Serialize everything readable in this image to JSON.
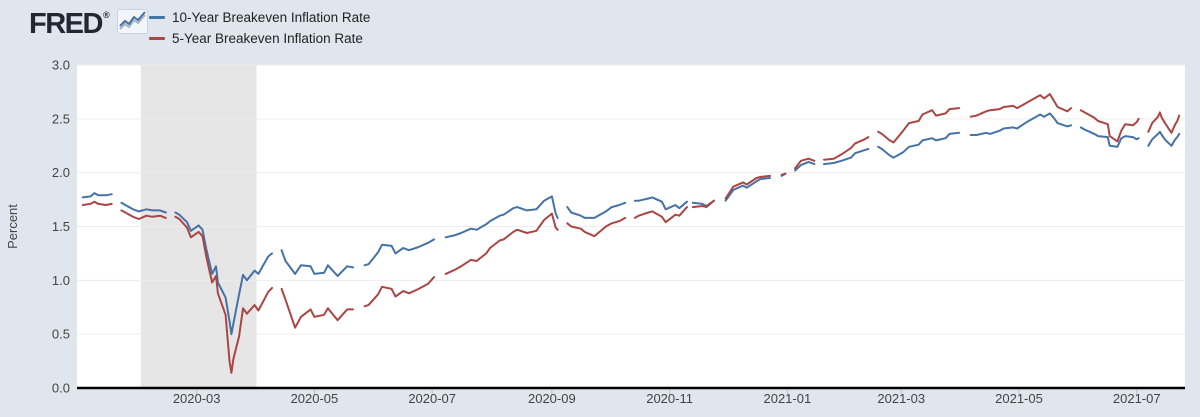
{
  "page": {
    "background": "#dfe6ed",
    "plot_background": "#ffffff"
  },
  "header": {
    "logo_text": "FRED",
    "logo_registered": "®",
    "logo_icon": "fred-sparkline-icon"
  },
  "legend": {
    "position": "top-left",
    "items": [
      {
        "label": "10-Year Breakeven Inflation Rate",
        "color": "#4572a7"
      },
      {
        "label": "5-Year Breakeven Inflation Rate",
        "color": "#aa4643"
      }
    ]
  },
  "chart_data": {
    "type": "line",
    "title": "",
    "xlabel": "",
    "ylabel": "Percent",
    "ylim": [
      0,
      3.0
    ],
    "x_domain": [
      "2019-12-30",
      "2021-07-26"
    ],
    "grid": "horizontal",
    "legend_position": "top-left",
    "colors": {
      "axis_line": "#000000",
      "grid": "#ededed",
      "tick": "#bcc3cb",
      "label": "#444444",
      "recession_band": "#e6e6e6"
    },
    "yticks": [
      {
        "value": 0.0,
        "label": "0.0"
      },
      {
        "value": 0.5,
        "label": "0.5"
      },
      {
        "value": 1.0,
        "label": "1.0"
      },
      {
        "value": 1.5,
        "label": "1.5"
      },
      {
        "value": 2.0,
        "label": "2.0"
      },
      {
        "value": 2.5,
        "label": "2.5"
      },
      {
        "value": 3.0,
        "label": "3.0"
      }
    ],
    "xticks": [
      {
        "date": "2020-03-01",
        "label": "2020-03"
      },
      {
        "date": "2020-05-01",
        "label": "2020-05"
      },
      {
        "date": "2020-07-01",
        "label": "2020-07"
      },
      {
        "date": "2020-09-01",
        "label": "2020-09"
      },
      {
        "date": "2020-11-01",
        "label": "2020-11"
      },
      {
        "date": "2021-01-01",
        "label": "2021-01"
      },
      {
        "date": "2021-03-01",
        "label": "2021-03"
      },
      {
        "date": "2021-05-01",
        "label": "2021-05"
      },
      {
        "date": "2021-07-01",
        "label": "2021-07"
      }
    ],
    "recession_band": {
      "start": "2020-02-01",
      "end": "2020-04-01",
      "color": "#e6e6e6"
    },
    "dates": [
      "2020-01-02",
      "2020-01-06",
      "2020-01-08",
      "2020-01-10",
      "2020-01-14",
      "2020-01-17",
      "2020-01-20",
      "2020-01-22",
      "2020-01-24",
      "2020-01-28",
      "2020-01-31",
      "2020-02-04",
      "2020-02-07",
      "2020-02-11",
      "2020-02-14",
      "2020-02-17",
      "2020-02-19",
      "2020-02-21",
      "2020-02-25",
      "2020-02-27",
      "2020-03-02",
      "2020-03-04",
      "2020-03-06",
      "2020-03-09",
      "2020-03-11",
      "2020-03-12",
      "2020-03-16",
      "2020-03-18",
      "2020-03-19",
      "2020-03-20",
      "2020-03-23",
      "2020-03-25",
      "2020-03-27",
      "2020-03-31",
      "2020-04-02",
      "2020-04-07",
      "2020-04-09",
      "2020-04-10",
      "2020-04-14",
      "2020-04-16",
      "2020-04-21",
      "2020-04-24",
      "2020-04-29",
      "2020-05-01",
      "2020-05-06",
      "2020-05-08",
      "2020-05-13",
      "2020-05-18",
      "2020-05-21",
      "2020-05-25",
      "2020-05-27",
      "2020-05-29",
      "2020-06-03",
      "2020-06-05",
      "2020-06-10",
      "2020-06-12",
      "2020-06-16",
      "2020-06-19",
      "2020-06-24",
      "2020-06-29",
      "2020-07-02",
      "2020-07-03",
      "2020-07-08",
      "2020-07-13",
      "2020-07-16",
      "2020-07-21",
      "2020-07-24",
      "2020-07-29",
      "2020-07-31",
      "2020-08-05",
      "2020-08-07",
      "2020-08-12",
      "2020-08-14",
      "2020-08-19",
      "2020-08-24",
      "2020-08-28",
      "2020-09-01",
      "2020-09-03",
      "2020-09-04",
      "2020-09-07",
      "2020-09-09",
      "2020-09-11",
      "2020-09-16",
      "2020-09-18",
      "2020-09-23",
      "2020-09-25",
      "2020-09-29",
      "2020-10-02",
      "2020-10-06",
      "2020-10-09",
      "2020-10-12",
      "2020-10-14",
      "2020-10-16",
      "2020-10-21",
      "2020-10-23",
      "2020-10-28",
      "2020-10-30",
      "2020-11-04",
      "2020-11-06",
      "2020-11-10",
      "2020-11-11",
      "2020-11-13",
      "2020-11-18",
      "2020-11-20",
      "2020-11-24",
      "2020-11-26",
      "2020-11-30",
      "2020-12-04",
      "2020-12-09",
      "2020-12-11",
      "2020-12-16",
      "2020-12-18",
      "2020-12-23",
      "2020-12-25",
      "2020-12-29",
      "2020-12-31",
      "2021-01-01",
      "2021-01-05",
      "2021-01-08",
      "2021-01-12",
      "2021-01-15",
      "2021-01-18",
      "2021-01-20",
      "2021-01-25",
      "2021-01-29",
      "2021-02-03",
      "2021-02-05",
      "2021-02-10",
      "2021-02-12",
      "2021-02-15",
      "2021-02-17",
      "2021-02-19",
      "2021-02-23",
      "2021-02-25",
      "2021-03-02",
      "2021-03-05",
      "2021-03-10",
      "2021-03-12",
      "2021-03-17",
      "2021-03-19",
      "2021-03-24",
      "2021-03-26",
      "2021-03-31",
      "2021-04-02",
      "2021-04-06",
      "2021-04-09",
      "2021-04-14",
      "2021-04-16",
      "2021-04-21",
      "2021-04-23",
      "2021-04-28",
      "2021-04-30",
      "2021-05-05",
      "2021-05-07",
      "2021-05-12",
      "2021-05-14",
      "2021-05-17",
      "2021-05-19",
      "2021-05-21",
      "2021-05-26",
      "2021-05-28",
      "2021-05-31",
      "2021-06-02",
      "2021-06-04",
      "2021-06-09",
      "2021-06-11",
      "2021-06-16",
      "2021-06-17",
      "2021-06-21",
      "2021-06-23",
      "2021-06-25",
      "2021-06-29",
      "2021-07-01",
      "2021-07-02",
      "2021-07-05",
      "2021-07-07",
      "2021-07-09",
      "2021-07-12",
      "2021-07-13",
      "2021-07-14",
      "2021-07-16",
      "2021-07-19",
      "2021-07-21",
      "2021-07-22",
      "2021-07-23"
    ],
    "series": [
      {
        "name": "10-Year Breakeven Inflation Rate",
        "color": "#4572a7",
        "values": [
          1.77,
          1.78,
          1.81,
          1.79,
          1.79,
          1.8,
          null,
          1.72,
          1.7,
          1.66,
          1.64,
          1.66,
          1.65,
          1.65,
          1.63,
          null,
          1.63,
          1.61,
          1.54,
          1.46,
          1.51,
          1.47,
          1.29,
          1.06,
          1.13,
          0.98,
          0.84,
          0.62,
          0.5,
          0.6,
          0.87,
          1.05,
          1.0,
          1.09,
          1.06,
          1.22,
          1.25,
          null,
          1.28,
          1.18,
          1.06,
          1.14,
          1.13,
          1.06,
          1.07,
          1.14,
          1.04,
          1.13,
          1.12,
          null,
          1.14,
          1.15,
          1.26,
          1.33,
          1.32,
          1.25,
          1.3,
          1.28,
          1.31,
          1.35,
          1.38,
          null,
          1.4,
          1.42,
          1.44,
          1.48,
          1.47,
          1.52,
          1.55,
          1.6,
          1.61,
          1.67,
          1.68,
          1.65,
          1.66,
          1.74,
          1.78,
          1.62,
          1.58,
          null,
          1.68,
          1.63,
          1.6,
          1.58,
          1.58,
          1.6,
          1.64,
          1.68,
          1.7,
          1.72,
          null,
          1.74,
          1.74,
          1.76,
          1.77,
          1.73,
          1.66,
          1.7,
          1.67,
          1.73,
          null,
          1.72,
          1.71,
          1.69,
          1.74,
          null,
          1.74,
          1.84,
          1.88,
          1.86,
          1.92,
          1.94,
          1.95,
          null,
          1.97,
          1.99,
          null,
          2.02,
          2.07,
          2.1,
          2.08,
          null,
          2.08,
          2.09,
          2.11,
          2.14,
          2.18,
          2.21,
          2.22,
          null,
          2.24,
          2.22,
          2.16,
          2.14,
          2.19,
          2.24,
          2.26,
          2.3,
          2.32,
          2.3,
          2.32,
          2.36,
          2.37,
          null,
          2.35,
          2.35,
          2.37,
          2.36,
          2.39,
          2.41,
          2.42,
          2.41,
          2.47,
          2.49,
          2.54,
          2.52,
          2.55,
          2.51,
          2.46,
          2.43,
          2.44,
          null,
          2.42,
          2.4,
          2.36,
          2.34,
          2.33,
          2.25,
          2.24,
          2.32,
          2.34,
          2.33,
          2.31,
          2.32,
          null,
          2.25,
          2.31,
          2.36,
          2.38,
          2.35,
          2.3,
          2.25,
          2.31,
          2.33,
          2.36
        ]
      },
      {
        "name": "5-Year Breakeven Inflation Rate",
        "color": "#aa4643",
        "values": [
          1.7,
          1.71,
          1.73,
          1.71,
          1.7,
          1.71,
          null,
          1.65,
          1.63,
          1.59,
          1.57,
          1.6,
          1.59,
          1.6,
          1.58,
          null,
          1.59,
          1.57,
          1.49,
          1.4,
          1.45,
          1.41,
          1.22,
          0.98,
          1.04,
          0.88,
          0.68,
          0.25,
          0.14,
          0.27,
          0.48,
          0.74,
          0.69,
          0.77,
          0.72,
          0.89,
          0.93,
          null,
          0.92,
          0.82,
          0.56,
          0.66,
          0.73,
          0.66,
          0.68,
          0.74,
          0.63,
          0.73,
          0.73,
          null,
          0.76,
          0.77,
          0.87,
          0.94,
          0.92,
          0.85,
          0.9,
          0.88,
          0.92,
          0.97,
          1.03,
          null,
          1.06,
          1.1,
          1.13,
          1.19,
          1.18,
          1.25,
          1.3,
          1.37,
          1.38,
          1.45,
          1.47,
          1.44,
          1.46,
          1.56,
          1.62,
          1.49,
          1.47,
          null,
          1.53,
          1.5,
          1.48,
          1.45,
          1.41,
          1.44,
          1.5,
          1.53,
          1.55,
          1.58,
          null,
          1.58,
          1.6,
          1.63,
          1.64,
          1.59,
          1.54,
          1.61,
          1.6,
          1.68,
          null,
          1.68,
          1.69,
          1.68,
          1.74,
          null,
          1.76,
          1.87,
          1.91,
          1.89,
          1.95,
          1.96,
          1.97,
          null,
          1.98,
          1.99,
          null,
          2.04,
          2.11,
          2.13,
          2.11,
          null,
          2.12,
          2.13,
          2.17,
          2.23,
          2.27,
          2.31,
          2.33,
          null,
          2.38,
          2.36,
          2.3,
          2.28,
          2.39,
          2.46,
          2.48,
          2.54,
          2.58,
          2.53,
          2.55,
          2.59,
          2.6,
          null,
          2.52,
          2.53,
          2.57,
          2.58,
          2.59,
          2.61,
          2.62,
          2.6,
          2.65,
          2.67,
          2.72,
          2.69,
          2.73,
          2.67,
          2.61,
          2.57,
          2.6,
          null,
          2.58,
          2.56,
          2.51,
          2.48,
          2.45,
          2.34,
          2.29,
          2.39,
          2.45,
          2.44,
          2.47,
          2.5,
          null,
          2.38,
          2.46,
          2.52,
          2.56,
          2.51,
          2.45,
          2.37,
          2.45,
          2.48,
          2.53
        ]
      }
    ]
  }
}
